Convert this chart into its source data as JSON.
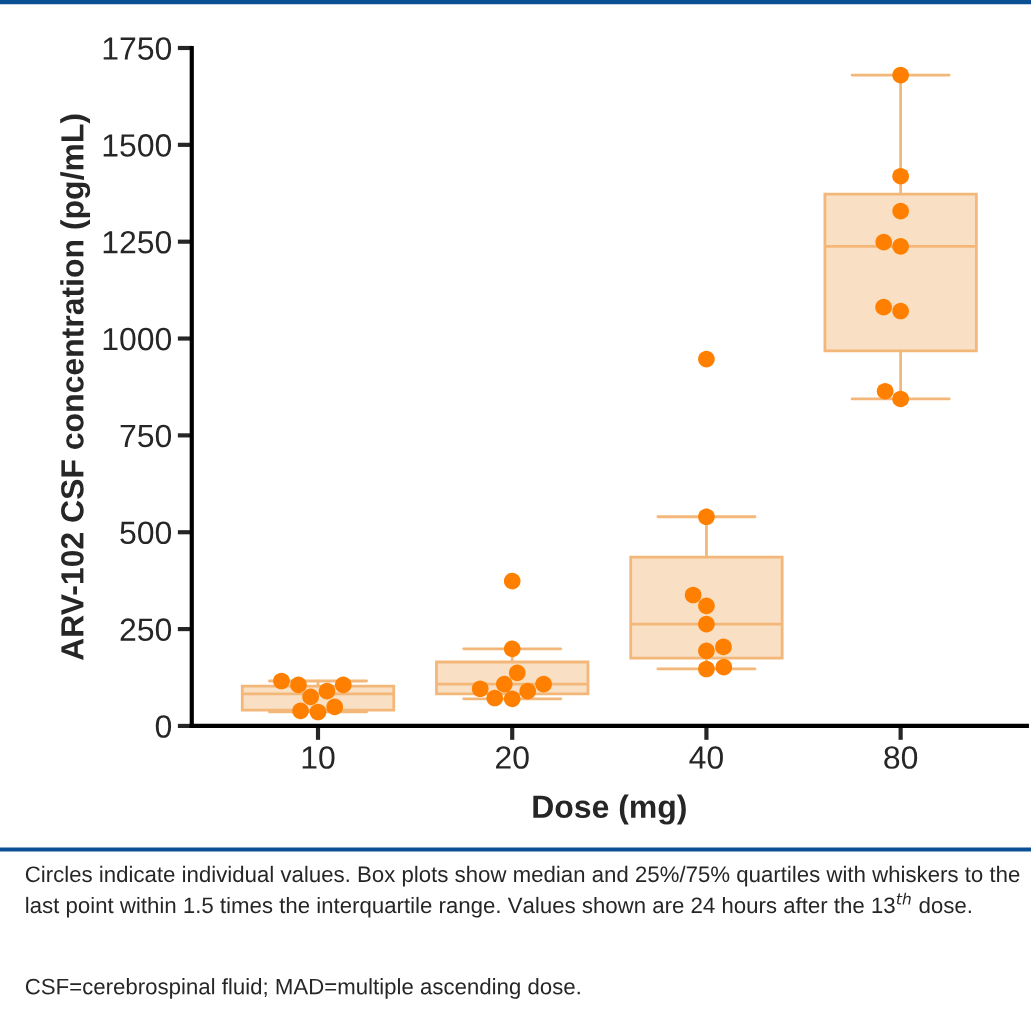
{
  "chart_data": {
    "type": "box",
    "xlabel": "Dose (mg)",
    "ylabel": "ARV-102 CSF concentration (pg/mL)",
    "categories": [
      "10",
      "20",
      "40",
      "80"
    ],
    "ylim": [
      0,
      1750
    ],
    "yticks": [
      0,
      250,
      500,
      750,
      1000,
      1250,
      1500,
      1750
    ],
    "grid": false,
    "legend": false,
    "series": [
      {
        "color": "#f9dfc3",
        "boxes": [
          {
            "low": 36,
            "q1": 41,
            "median": 83,
            "q3": 103,
            "high": 116
          },
          {
            "low": 70,
            "q1": 83,
            "median": 108,
            "q3": 165,
            "high": 199
          },
          {
            "low": 147,
            "q1": 175,
            "median": 263,
            "q3": 436,
            "high": 540
          },
          {
            "low": 844,
            "q1": 968,
            "median": 1238,
            "q3": 1373,
            "high": 1680
          }
        ]
      },
      {
        "type": "scatter",
        "color": "#ff8000",
        "marker": "circle",
        "x": [
          "10",
          "10",
          "10",
          "10",
          "10",
          "10",
          "10",
          "10",
          "20",
          "20",
          "20",
          "20",
          "20",
          "20",
          "20",
          "20",
          "20",
          "40",
          "40",
          "40",
          "40",
          "40",
          "40",
          "40",
          "40",
          "40",
          "80",
          "80",
          "80",
          "80",
          "80",
          "80",
          "80",
          "80",
          "80"
        ],
        "values": [
          106,
          75,
          36,
          116,
          90,
          39,
          106,
          49,
          374,
          199,
          108,
          70,
          96,
          108,
          72,
          137,
          90,
          947,
          540,
          338,
          310,
          263,
          194,
          204,
          147,
          152,
          1680,
          1419,
          1329,
          1238,
          1249,
          1071,
          1081,
          844,
          864
        ]
      }
    ],
    "annotations": [
      "Circles indicate individual values. Box plots show median and 25%/75% quartiles with whiskers to the last point within 1.5 times the interquartile range. Values shown are 24 hours after the 13$^{th}$ dose.",
      "CSF=cerebrospinal fluid; MAD=multiple ascending dose."
    ]
  }
}
